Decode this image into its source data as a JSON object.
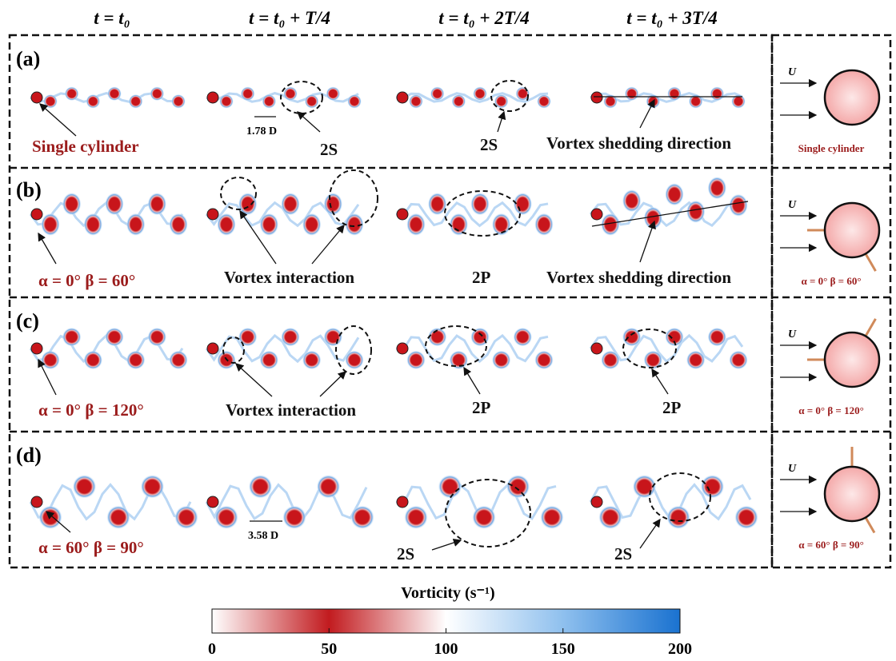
{
  "columns": [
    "t = t₀",
    "t = t₀ + T/4",
    "t = t₀ + 2T/4",
    "t = t₀ + 3T/4"
  ],
  "rows": [
    {
      "label": "(a)",
      "annotations": [
        "Single cylinder",
        "1.78 D",
        "2S",
        "2S",
        "Vortex shedding direction"
      ],
      "inset": {
        "flow": "U",
        "caption": "Single cylinder"
      }
    },
    {
      "label": "(b)",
      "annotations": [
        "α = 0°  β = 60°",
        "Vortex interaction",
        "2P",
        "Vortex shedding direction"
      ],
      "inset": {
        "flow": "U",
        "caption": "α = 0°  β = 60°"
      }
    },
    {
      "label": "(c)",
      "annotations": [
        "α = 0°  β = 120°",
        "Vortex interaction",
        "2P",
        "2P"
      ],
      "inset": {
        "flow": "U",
        "caption": "α = 0°  β = 120°"
      }
    },
    {
      "label": "(d)",
      "annotations": [
        "α = 60°  β = 90°",
        "3.58 D",
        "2S",
        "2S"
      ],
      "inset": {
        "flow": "U",
        "caption": "α = 60°  β = 90°"
      }
    }
  ],
  "colorbar": {
    "title": "Vorticity (s⁻¹)",
    "lim": [
      0,
      200
    ],
    "ticks": [
      0,
      50,
      100,
      150,
      200
    ]
  }
}
